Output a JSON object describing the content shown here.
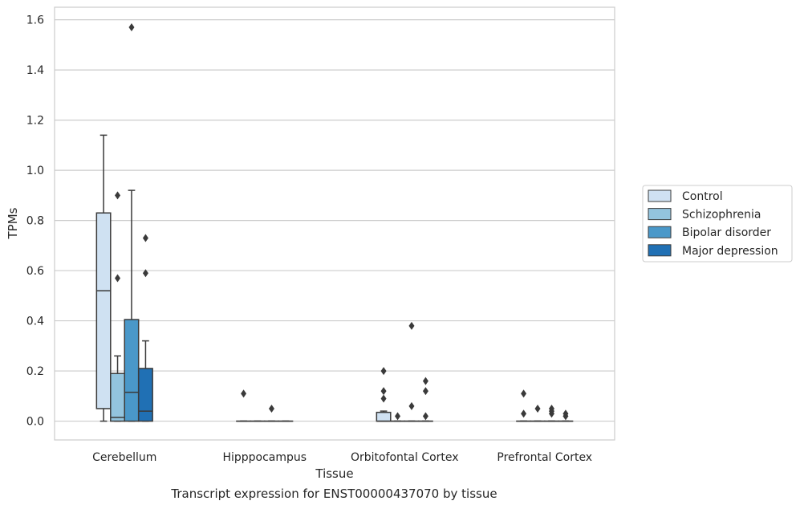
{
  "caption": "Transcript expression for ENST00000437070 by tissue",
  "chart_data": {
    "type": "box",
    "xlabel": "Tissue",
    "ylabel": "TPMs",
    "ylim": [
      -0.075,
      1.65
    ],
    "yticks": [
      0.0,
      0.2,
      0.4,
      0.6,
      0.8,
      1.0,
      1.2,
      1.4,
      1.6
    ],
    "ytick_labels": [
      "0.0",
      "0.2",
      "0.4",
      "0.6",
      "0.8",
      "1.0",
      "1.2",
      "1.4",
      "1.6"
    ],
    "grid": "horizontal",
    "legend_position": "right",
    "categories": [
      "Cerebellum",
      "Hipppocampus",
      "Orbitofontal Cortex",
      "Prefrontal Cortex"
    ],
    "series": [
      {
        "name": "Control",
        "color": "#cfe1f2",
        "boxes": [
          {
            "whislo": 0.0,
            "q1": 0.05,
            "median": 0.52,
            "q3": 0.83,
            "whishi": 1.14,
            "fliers": []
          },
          {
            "whislo": 0.0,
            "q1": 0.0,
            "median": 0.0,
            "q3": 0.0,
            "whishi": 0.0,
            "fliers": [
              0.11
            ]
          },
          {
            "whislo": 0.0,
            "q1": 0.0,
            "median": 0.0,
            "q3": 0.035,
            "whishi": 0.04,
            "fliers": [
              0.2,
              0.12,
              0.09
            ]
          },
          {
            "whislo": 0.0,
            "q1": 0.0,
            "median": 0.0,
            "q3": 0.0,
            "whishi": 0.0,
            "fliers": [
              0.11,
              0.03
            ]
          }
        ]
      },
      {
        "name": "Schizophrenia",
        "color": "#93c4de",
        "boxes": [
          {
            "whislo": 0.0,
            "q1": 0.0,
            "median": 0.015,
            "q3": 0.19,
            "whishi": 0.26,
            "fliers": [
              0.9,
              0.57
            ]
          },
          {
            "whislo": 0.0,
            "q1": 0.0,
            "median": 0.0,
            "q3": 0.0,
            "whishi": 0.0,
            "fliers": []
          },
          {
            "whislo": 0.0,
            "q1": 0.0,
            "median": 0.0,
            "q3": 0.0,
            "whishi": 0.0,
            "fliers": [
              0.02
            ]
          },
          {
            "whislo": 0.0,
            "q1": 0.0,
            "median": 0.0,
            "q3": 0.0,
            "whishi": 0.0,
            "fliers": [
              0.05
            ]
          }
        ]
      },
      {
        "name": "Bipolar disorder",
        "color": "#4a98c9",
        "boxes": [
          {
            "whislo": 0.0,
            "q1": 0.0,
            "median": 0.115,
            "q3": 0.405,
            "whishi": 0.92,
            "fliers": [
              1.57
            ]
          },
          {
            "whislo": 0.0,
            "q1": 0.0,
            "median": 0.0,
            "q3": 0.0,
            "whishi": 0.0,
            "fliers": [
              0.05
            ]
          },
          {
            "whislo": 0.0,
            "q1": 0.0,
            "median": 0.0,
            "q3": 0.0,
            "whishi": 0.0,
            "fliers": [
              0.38,
              0.06
            ]
          },
          {
            "whislo": 0.0,
            "q1": 0.0,
            "median": 0.0,
            "q3": 0.0,
            "whishi": 0.0,
            "fliers": [
              0.05,
              0.04,
              0.03
            ]
          }
        ]
      },
      {
        "name": "Major depression",
        "color": "#2070b4",
        "boxes": [
          {
            "whislo": 0.0,
            "q1": 0.0,
            "median": 0.04,
            "q3": 0.21,
            "whishi": 0.32,
            "fliers": [
              0.73,
              0.59
            ]
          },
          {
            "whislo": 0.0,
            "q1": 0.0,
            "median": 0.0,
            "q3": 0.0,
            "whishi": 0.0,
            "fliers": []
          },
          {
            "whislo": 0.0,
            "q1": 0.0,
            "median": 0.0,
            "q3": 0.0,
            "whishi": 0.0,
            "fliers": [
              0.16,
              0.12,
              0.02
            ]
          },
          {
            "whislo": 0.0,
            "q1": 0.0,
            "median": 0.0,
            "q3": 0.0,
            "whishi": 0.0,
            "fliers": [
              0.03,
              0.02
            ]
          }
        ]
      }
    ]
  }
}
